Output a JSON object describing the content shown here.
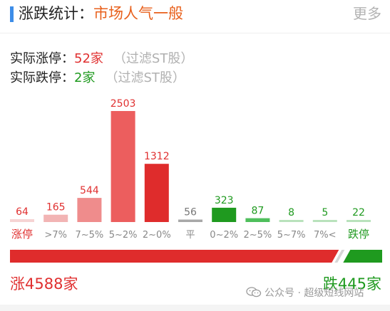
{
  "header": {
    "title_prefix": "涨跌统计：",
    "title_highlight": "市场人气一般",
    "more_label": "更多"
  },
  "stats": {
    "limit_up_label": "实际涨停：",
    "limit_up_value": "52家",
    "limit_down_label": "实际跌停：",
    "limit_down_value": "2家",
    "filter_note": "（过滤ST股）"
  },
  "colors": {
    "up_light": "#f6d3d3",
    "up_pale": "#f2b4b4",
    "up_mid": "#ef8c8c",
    "up_strong": "#ec5e5e",
    "up_deep": "#df2c2c",
    "flat": "#a8a8a8",
    "down_deep": "#1f9a1f",
    "down_mid": "#4fbf5c",
    "down_light": "#b9e2bc",
    "accent": "#e8601c"
  },
  "chart_data": {
    "type": "bar",
    "categories": [
      "涨停",
      ">7%",
      "7~5%",
      "5~2%",
      "2~0%",
      "平",
      "0~2%",
      "2~5%",
      "5~7%",
      "7%<",
      "跌停"
    ],
    "values": [
      64,
      165,
      544,
      2503,
      1312,
      56,
      323,
      87,
      8,
      5,
      22
    ],
    "bar_colors": [
      "#f6d3d3",
      "#f2b4b4",
      "#ef8c8c",
      "#ec5e5e",
      "#df2c2c",
      "#a8a8a8",
      "#1f9a1f",
      "#4fbf5c",
      "#b9e2bc",
      "#b9e2bc",
      "#b9e2bc"
    ],
    "label_colors": [
      "#e03030",
      "#e03030",
      "#e03030",
      "#e03030",
      "#e03030",
      "#777777",
      "#1f9a1f",
      "#1f9a1f",
      "#1f9a1f",
      "#1f9a1f",
      "#1f9a1f"
    ],
    "category_colors": [
      "#e03030",
      "#888888",
      "#888888",
      "#888888",
      "#888888",
      "#888888",
      "#888888",
      "#888888",
      "#888888",
      "#888888",
      "#1f9a1f"
    ],
    "ylim": [
      0,
      2503
    ],
    "grid": false,
    "legend": "none"
  },
  "ratio": {
    "up_count": 4588,
    "down_count": 445
  },
  "totals": {
    "up_text": "涨4588家",
    "down_text": "跌445家"
  },
  "watermark": {
    "text": "公众号 · 超级短线网站",
    "icon": "wechat-icon"
  }
}
